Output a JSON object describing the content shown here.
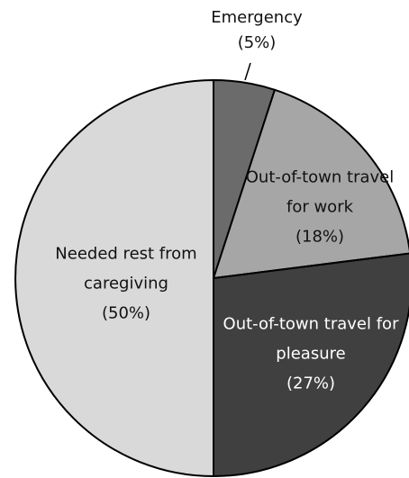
{
  "chart_data": {
    "type": "pie",
    "categories": [
      "Emergency",
      "Out-of-town travel for work",
      "Out-of-town travel for pleasure",
      "Needed rest from caregiving"
    ],
    "values": [
      5,
      18,
      27,
      50
    ],
    "value_labels": [
      "(5%)",
      "(18%)",
      "(27%)",
      "(50%)"
    ],
    "colors": [
      "#6b6b6b",
      "#a6a6a6",
      "#404040",
      "#d9d9d9"
    ]
  }
}
